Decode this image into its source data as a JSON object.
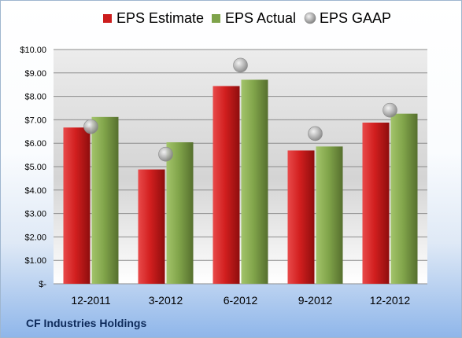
{
  "chart_data": {
    "type": "bar",
    "categories": [
      "12-2011",
      "3-2012",
      "6-2012",
      "9-2012",
      "12-2012"
    ],
    "series": [
      {
        "name": "EPS Estimate",
        "type": "bar",
        "color": "#cc1d1d",
        "values": [
          6.67,
          4.88,
          8.44,
          5.69,
          6.88
        ]
      },
      {
        "name": "EPS Actual",
        "type": "bar",
        "color": "#7ea34a",
        "values": [
          7.12,
          6.04,
          8.71,
          5.86,
          7.26
        ]
      },
      {
        "name": "EPS GAAP",
        "type": "marker",
        "color": "#a9a9a9",
        "values": [
          6.71,
          5.53,
          9.33,
          6.41,
          7.41
        ]
      }
    ],
    "ylim": [
      0,
      10
    ],
    "yticks": [
      {
        "value": 10,
        "label": "$10.00"
      },
      {
        "value": 9,
        "label": "$9.00"
      },
      {
        "value": 8,
        "label": "$8.00"
      },
      {
        "value": 7,
        "label": "$7.00"
      },
      {
        "value": 6,
        "label": "$6.00"
      },
      {
        "value": 5,
        "label": "$5.00"
      },
      {
        "value": 4,
        "label": "$4.00"
      },
      {
        "value": 3,
        "label": "$3.00"
      },
      {
        "value": 2,
        "label": "$2.00"
      },
      {
        "value": 1,
        "label": "$1.00"
      },
      {
        "value": 0,
        "label": "$-"
      }
    ],
    "grid": true,
    "legend": "top"
  },
  "footer": {
    "company": "CF Industries Holdings"
  }
}
